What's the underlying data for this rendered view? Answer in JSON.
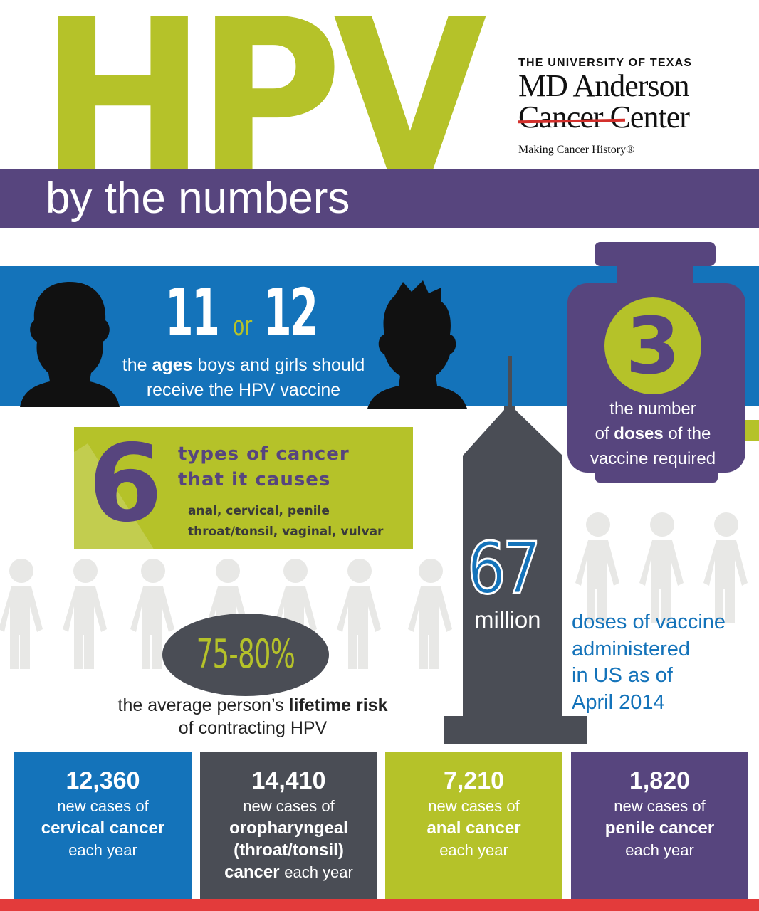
{
  "header": {
    "title": "HPV",
    "subtitle": "by the numbers"
  },
  "logo": {
    "university": "THE UNIVERSITY OF TEXAS",
    "name_line1": "MD Anderson",
    "name_line2": "Cancer Center",
    "tagline": "Making Cancer History®"
  },
  "ages": {
    "first": "11",
    "connector": "or",
    "second": "12",
    "desc_pre": "the ",
    "desc_bold": "ages",
    "desc_post": " boys and girls should",
    "desc_line2": "receive the HPV vaccine"
  },
  "doses": {
    "number": "3",
    "line1": "the number",
    "line2_pre": "of ",
    "line2_bold": "doses",
    "line2_post": " of the",
    "line3": "vaccine required"
  },
  "cancer_types": {
    "number": "6",
    "title_line1": "types of cancer",
    "title_line2": "that it causes",
    "list_line1": "anal, cervical, penile",
    "list_line2": "throat/tonsil, vaginal, vulvar"
  },
  "vaccine_admin": {
    "number": "67",
    "unit": "million",
    "line1": "doses of vaccine",
    "line2": "administered",
    "line3": "in US as of",
    "line4": "April 2014"
  },
  "lifetime_risk": {
    "value": "75-80%",
    "desc_pre": "the average person’s ",
    "desc_bold": "lifetime risk",
    "desc_line2": "of contracting HPV"
  },
  "stats": [
    {
      "number": "12,360",
      "line1": "new cases of",
      "bold": "cervical cancer",
      "line3": "each year",
      "color": "#1473ba"
    },
    {
      "number": "14,410",
      "line1": "new cases of",
      "bold": "oropharyngeal",
      "bold2": "(throat/tonsil)",
      "bold3": "cancer",
      "line3": "each year",
      "color": "#4a4d55"
    },
    {
      "number": "7,210",
      "line1": "new cases of",
      "bold": "anal cancer",
      "line3": "each year",
      "color": "#b5c229"
    },
    {
      "number": "1,820",
      "line1": "new cases of",
      "bold": "penile cancer",
      "line3": "each year",
      "color": "#57457e"
    }
  ],
  "colors": {
    "green": "#b5c229",
    "purple": "#57457e",
    "blue": "#1473ba",
    "gray": "#4a4d55",
    "red": "#e33b3b",
    "people": "#e8e8e6"
  }
}
